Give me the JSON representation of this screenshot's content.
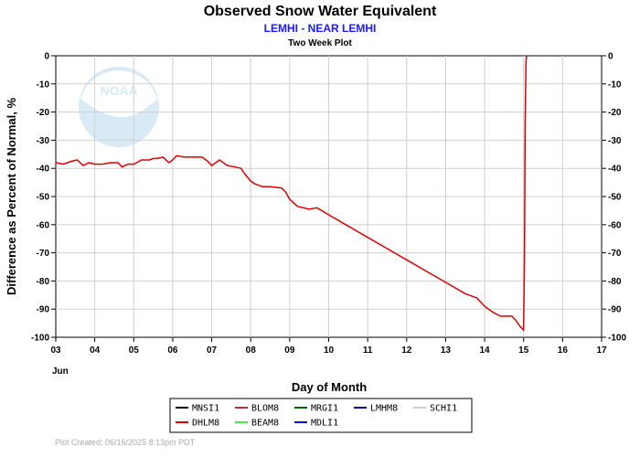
{
  "chart_data": {
    "type": "line",
    "title": "Observed Snow Water Equivalent",
    "subtitle": "LEMHI - NEAR LEMHI",
    "subtitle2": "Two Week Plot",
    "xlabel": "Day of Month",
    "x_month_label": "Jun",
    "ylabel": "Difference as Percent of Normal, %",
    "ylim": [
      -100,
      0
    ],
    "xlim": [
      3,
      17
    ],
    "y_ticks": [
      "0",
      "-10",
      "-20",
      "-30",
      "-40",
      "-50",
      "-60",
      "-70",
      "-80",
      "-90",
      "-100"
    ],
    "x_ticks": [
      "03",
      "04",
      "05",
      "06",
      "07",
      "08",
      "09",
      "10",
      "11",
      "12",
      "13",
      "14",
      "15",
      "16",
      "17"
    ],
    "grid": true,
    "legend_position": "bottom",
    "series": [
      {
        "name": "DHLM8",
        "color": "#dd0000",
        "x": [
          3.0,
          3.2,
          3.4,
          3.55,
          3.7,
          3.85,
          4.0,
          4.2,
          4.4,
          4.6,
          4.7,
          4.85,
          5.0,
          5.2,
          5.4,
          5.5,
          5.6,
          5.75,
          5.9,
          6.0,
          6.1,
          6.3,
          6.5,
          6.75,
          6.9,
          7.0,
          7.2,
          7.4,
          7.6,
          7.75,
          7.85,
          8.0,
          8.1,
          8.3,
          8.5,
          8.8,
          8.9,
          9.0,
          9.2,
          9.5,
          9.7,
          10.0,
          10.5,
          11.0,
          11.5,
          12.0,
          12.5,
          13.0,
          13.5,
          13.8,
          14.0,
          14.2,
          14.4,
          14.5,
          14.7,
          14.8,
          14.9,
          15.0,
          15.02,
          15.04,
          15.06,
          15.08
        ],
        "y": [
          -38,
          -38.5,
          -37.5,
          -37,
          -39,
          -38,
          -38.5,
          -38.5,
          -38,
          -38,
          -39.5,
          -38.5,
          -38.5,
          -37,
          -37,
          -36.5,
          -36.5,
          -36,
          -38,
          -37,
          -35.5,
          -36,
          -36,
          -36,
          -37.5,
          -39,
          -37,
          -39,
          -39.5,
          -40,
          -42,
          -44.5,
          -45.5,
          -46.5,
          -46.5,
          -47,
          -48.5,
          -51,
          -53.5,
          -54.5,
          -54,
          -56.5,
          -60.5,
          -64.5,
          -68.5,
          -72.5,
          -76.5,
          -80.5,
          -84.5,
          -86,
          -89,
          -91,
          -92.5,
          -92.5,
          -92.5,
          -94,
          -96,
          -97.5,
          -73,
          -25,
          -2,
          0
        ]
      }
    ],
    "legend": [
      {
        "name": "MNSI1",
        "color": "#000000"
      },
      {
        "name": "BLOM8",
        "color": "#cc2244"
      },
      {
        "name": "MRGI1",
        "color": "#006600"
      },
      {
        "name": "LMHM8",
        "color": "#000099"
      },
      {
        "name": "SCHI1",
        "color": "#cccccc"
      },
      {
        "name": "DHLM8",
        "color": "#dd0000"
      },
      {
        "name": "BEAM8",
        "color": "#44ee44"
      },
      {
        "name": "MDLI1",
        "color": "#0000ee"
      }
    ]
  },
  "footer": "Plot Created: 06/16/2025 8:13pm PDT",
  "logo_text": "NOAA"
}
